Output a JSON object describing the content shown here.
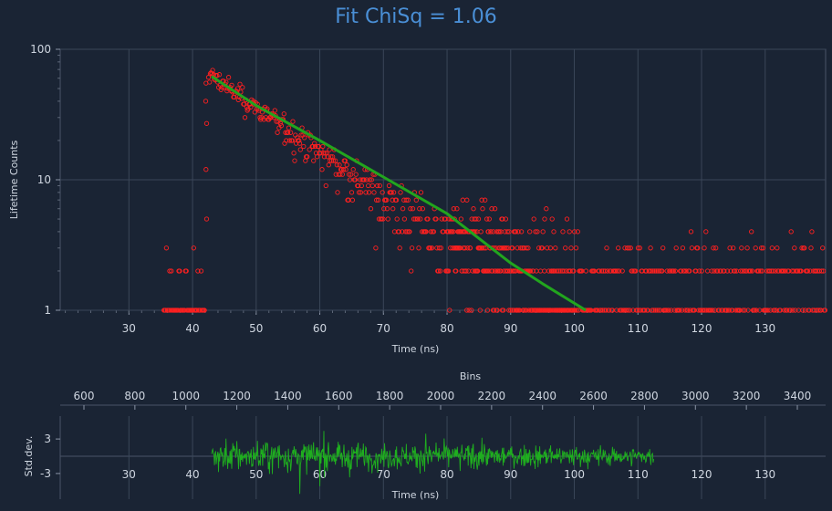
{
  "chart_data": [
    {
      "type": "scatter",
      "title": "Fit ChiSq = 1.06",
      "xlabel": "Time (ns)",
      "ylabel": "Lifetime Counts",
      "yscale": "log",
      "xlim": [
        19.2,
        139.5
      ],
      "ylim": [
        1,
        100
      ],
      "xticks": [
        30,
        40,
        50,
        60,
        70,
        80,
        90,
        100,
        110,
        120,
        130
      ],
      "yticks": [
        1,
        10,
        100
      ],
      "grid": true,
      "colors": {
        "background": "#1a2434",
        "data": "#ff2020",
        "fit": "#22a51e",
        "grid": "#3a4658",
        "title": "#4a8fd6"
      },
      "series": [
        {
          "kind": "points",
          "x_range": [
            35.5,
            139.5
          ],
          "peak": {
            "x": 42.5,
            "y": 65
          },
          "baseline_pre": [
            1,
            2,
            3
          ],
          "baseline_tail": [
            1,
            2,
            3,
            4,
            5
          ]
        },
        {
          "kind": "fit-curve",
          "points": [
            [
              43,
              62
            ],
            [
              50,
              37
            ],
            [
              60,
              20
            ],
            [
              70,
              10.5
            ],
            [
              80,
              5.5
            ],
            [
              90,
              2.3
            ],
            [
              95,
              1.6
            ],
            [
              101.8,
              1
            ]
          ]
        }
      ]
    },
    {
      "type": "line",
      "xlabel": "Time (ns)",
      "ylabel": "Std.dev.",
      "secondary_xlabel": "Bins",
      "secondary_xticks": [
        600,
        800,
        1000,
        1200,
        1400,
        1600,
        1800,
        2000,
        2200,
        2400,
        2600,
        2800,
        3000,
        3200,
        3400
      ],
      "xlim": [
        19.2,
        139.5
      ],
      "yticks": [
        3,
        -3
      ],
      "xticks": [
        30,
        40,
        50,
        60,
        70,
        80,
        90,
        100,
        110,
        120,
        130
      ],
      "residual_x_range": [
        43,
        112.5
      ],
      "colors": {
        "residual": "#1fae1f"
      }
    }
  ]
}
